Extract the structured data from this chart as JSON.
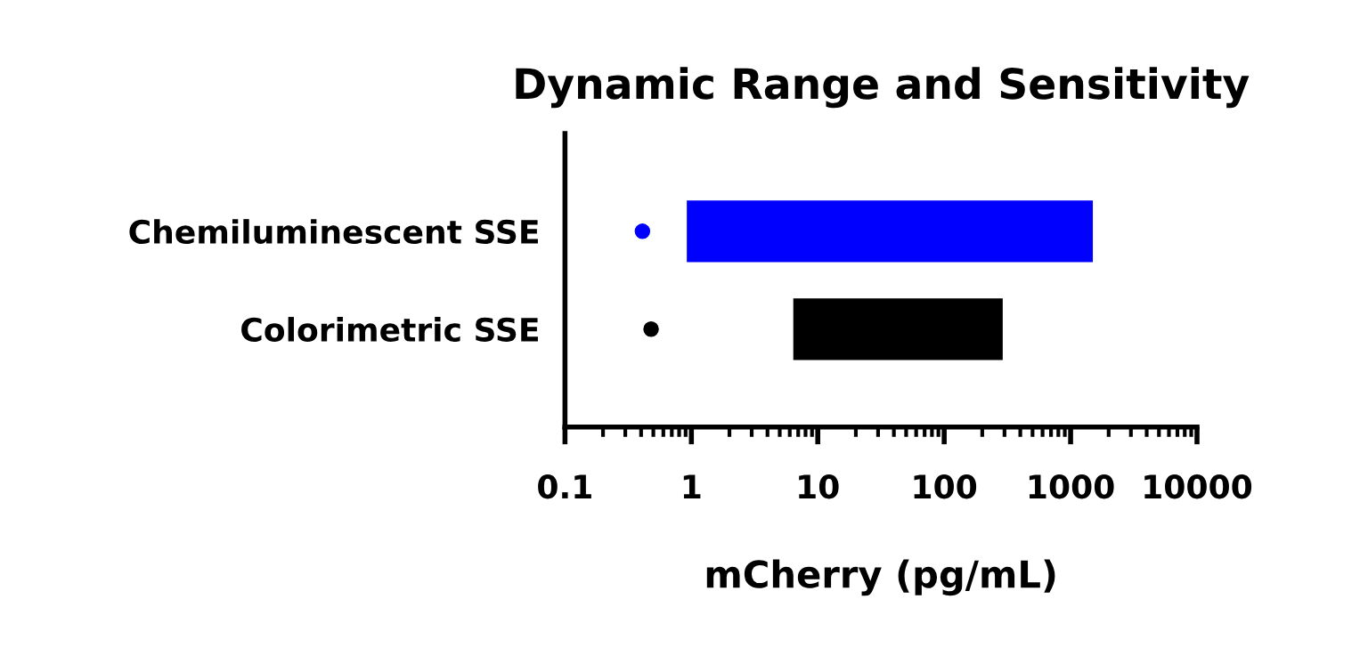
{
  "chart_data": {
    "type": "bar",
    "orientation": "horizontal",
    "title": "Dynamic Range and Sensitivity",
    "xlabel": "mCherry (pg/mL)",
    "categories": [
      "Chemiluminescent SSE",
      "Colorimetric SSE"
    ],
    "series": [
      {
        "values": [
          1499,
          284
        ],
        "base": [
          0.92,
          6.4
        ],
        "colors": [
          "#0000ff",
          "#000000"
        ]
      },
      {
        "type": "scatter",
        "x": [
          "Chemiluminescent SSE",
          "Colorimetric SSE"
        ],
        "values": [
          0.41,
          0.48
        ],
        "colors": [
          "#0000ff",
          "#000000"
        ]
      }
    ],
    "log": "x",
    "xlim": [
      0.1,
      10000
    ],
    "xticks": [
      0.1,
      1,
      10,
      100,
      1000,
      10000
    ],
    "grid": false,
    "legend": false,
    "marker": "circle"
  }
}
